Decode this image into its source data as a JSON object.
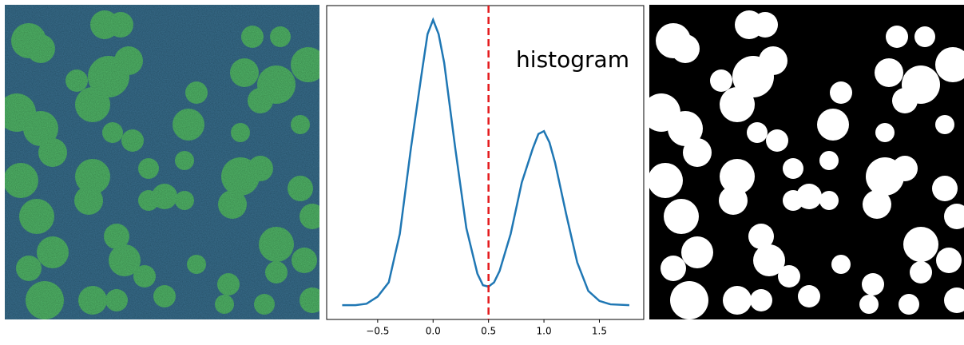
{
  "chart_data": {
    "type": "line",
    "annotation": "histogram",
    "x": [
      -0.82,
      -0.7,
      -0.6,
      -0.5,
      -0.4,
      -0.3,
      -0.2,
      -0.1,
      -0.05,
      0,
      0.05,
      0.1,
      0.2,
      0.3,
      0.4,
      0.45,
      0.5,
      0.55,
      0.6,
      0.7,
      0.8,
      0.9,
      0.95,
      1.0,
      1.05,
      1.1,
      1.2,
      1.3,
      1.4,
      1.5,
      1.6,
      1.77
    ],
    "values": [
      0.0,
      0.0,
      0.005,
      0.03,
      0.08,
      0.25,
      0.55,
      0.82,
      0.95,
      1.0,
      0.95,
      0.85,
      0.55,
      0.27,
      0.11,
      0.07,
      0.065,
      0.08,
      0.12,
      0.25,
      0.43,
      0.55,
      0.6,
      0.61,
      0.57,
      0.5,
      0.32,
      0.15,
      0.05,
      0.015,
      0.003,
      0.0
    ],
    "color": "#1f77b4",
    "threshold": 0.5,
    "threshold_color": "#e41a1c",
    "xlim": [
      -0.96,
      1.9
    ],
    "ylim": [
      -0.05,
      1.05
    ],
    "xticks": [
      {
        "value": -0.5,
        "label": "−0.5"
      },
      {
        "value": 0,
        "label": "0.0"
      },
      0.5,
      {
        "value": 1.0,
        "label": "1.0"
      },
      1.5
    ]
  }
}
